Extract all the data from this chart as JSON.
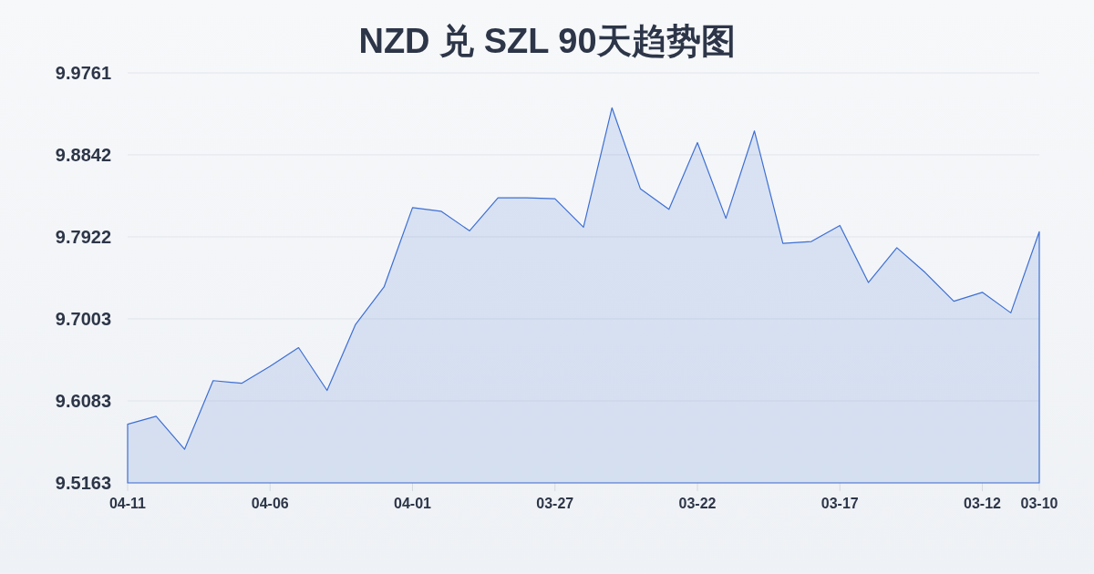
{
  "chart_data": {
    "type": "area",
    "title": "NZD 兑 SZL 90天趋势图",
    "categories": [
      "04-11",
      null,
      null,
      null,
      null,
      "04-06",
      null,
      null,
      null,
      null,
      "04-01",
      null,
      null,
      null,
      null,
      "03-27",
      null,
      null,
      null,
      null,
      "03-22",
      null,
      null,
      null,
      null,
      "03-17",
      null,
      null,
      null,
      null,
      "03-12",
      null,
      "03-10"
    ],
    "series": [
      {
        "color": "#3e6fd3",
        "values": [
          9.582,
          9.591,
          9.554,
          9.631,
          9.628,
          9.647,
          9.668,
          9.62,
          9.694,
          9.736,
          9.825,
          9.821,
          9.799,
          9.836,
          9.836,
          9.835,
          9.803,
          9.937,
          9.846,
          9.823,
          9.898,
          9.813,
          9.911,
          9.785,
          9.787,
          9.805,
          9.741,
          9.78,
          9.752,
          9.72,
          9.73,
          9.707,
          9.798
        ]
      }
    ],
    "ylim": [
      9.5163,
      9.9761
    ],
    "yticks": [
      9.5163,
      9.6083,
      9.7003,
      9.7922,
      9.8842,
      9.9761
    ],
    "grid": "y"
  }
}
